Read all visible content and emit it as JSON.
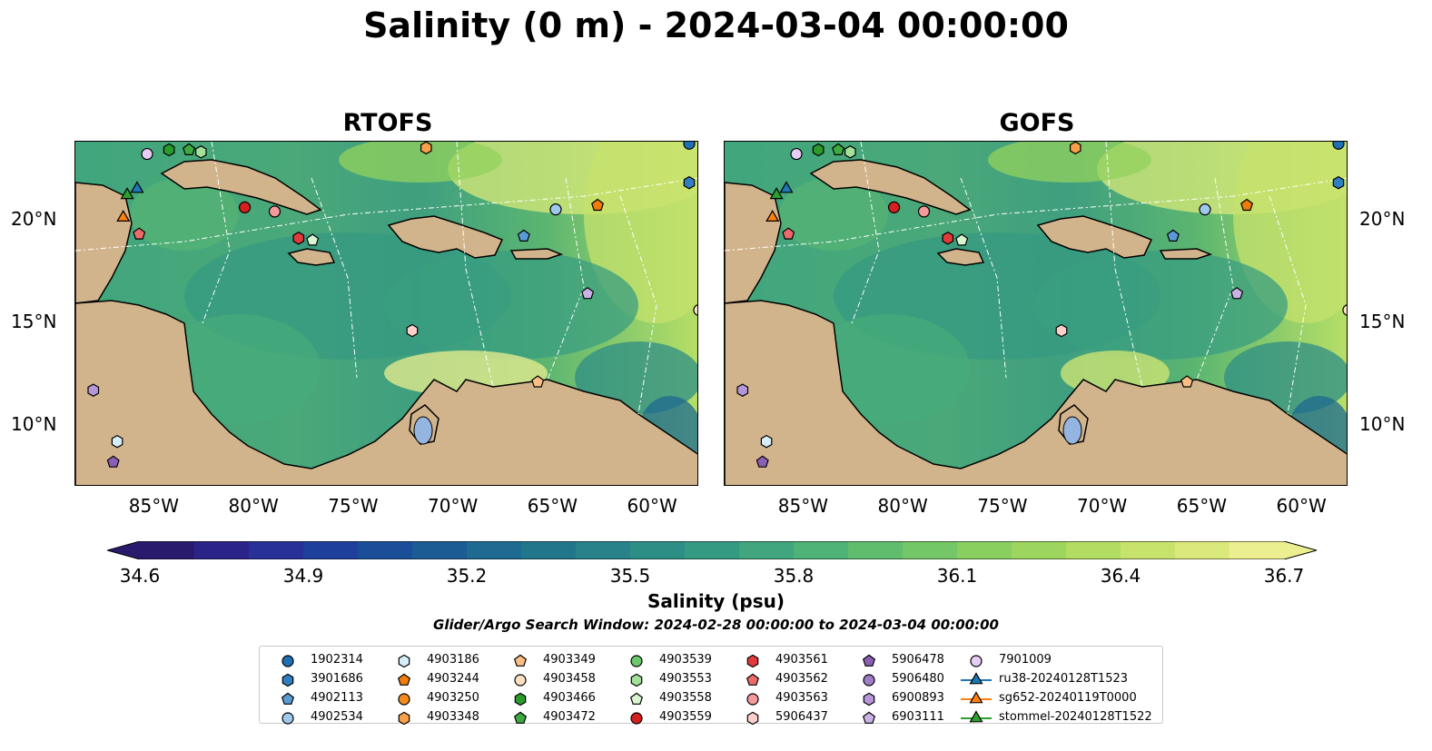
{
  "title": "Salinity (0 m) - 2024-03-04 00:00:00",
  "panels": [
    {
      "title": "RTOFS"
    },
    {
      "title": "GOFS"
    }
  ],
  "x_ticks": [
    "85°W",
    "80°W",
    "75°W",
    "70°W",
    "65°W",
    "60°W"
  ],
  "y_ticks": [
    "20°N",
    "15°N",
    "10°N"
  ],
  "colorbar": {
    "label": "Salinity (psu)",
    "ticks": [
      "34.6",
      "34.9",
      "35.2",
      "35.5",
      "35.8",
      "36.1",
      "36.4",
      "36.7"
    ],
    "min": 34.6,
    "max": 36.7,
    "colors": [
      "#2a1a6e",
      "#2b2488",
      "#283198",
      "#1e3f9c",
      "#1a4e98",
      "#1b5c94",
      "#1e6a90",
      "#22768c",
      "#278289",
      "#2d8e86",
      "#359a82",
      "#41a67d",
      "#4fb276",
      "#60bd6e",
      "#74c766",
      "#89cf60",
      "#9dd65e",
      "#b2dd62",
      "#c7e36c",
      "#dbe97c",
      "#ecef8f"
    ],
    "extend": "both"
  },
  "search_window": "Glider/Argo Search Window: 2024-02-28 00:00:00 to 2024-03-04 00:00:00",
  "legend": [
    {
      "label": "1902314",
      "marker": "circle",
      "color": "#1f6fb4"
    },
    {
      "label": "3901686",
      "marker": "hexagon",
      "color": "#2f7fc1"
    },
    {
      "label": "4902113",
      "marker": "pentagon",
      "color": "#5b9bd5"
    },
    {
      "label": "4902534",
      "marker": "circle",
      "color": "#9ec9ec"
    },
    {
      "label": "4903186",
      "marker": "hexagon",
      "color": "#d6eef9"
    },
    {
      "label": "4903244",
      "marker": "pentagon",
      "color": "#f07c0a"
    },
    {
      "label": "4903250",
      "marker": "circle",
      "color": "#f58a1f"
    },
    {
      "label": "4903348",
      "marker": "hexagon",
      "color": "#f8a14a"
    },
    {
      "label": "4903349",
      "marker": "pentagon",
      "color": "#fbbf86"
    },
    {
      "label": "4903458",
      "marker": "circle",
      "color": "#fde0c2"
    },
    {
      "label": "4903466",
      "marker": "hexagon",
      "color": "#2a9a2a"
    },
    {
      "label": "4903472",
      "marker": "pentagon",
      "color": "#3daa3d"
    },
    {
      "label": "4903539",
      "marker": "circle",
      "color": "#6cc86c"
    },
    {
      "label": "4903553",
      "marker": "hexagon",
      "color": "#a3e09a"
    },
    {
      "label": "4903558",
      "marker": "pentagon",
      "color": "#d8f5cf"
    },
    {
      "label": "4903559",
      "marker": "circle",
      "color": "#d42020"
    },
    {
      "label": "4903561",
      "marker": "hexagon",
      "color": "#e03a3a"
    },
    {
      "label": "4903562",
      "marker": "pentagon",
      "color": "#ec6a6a"
    },
    {
      "label": "4903563",
      "marker": "circle",
      "color": "#f59a9a"
    },
    {
      "label": "5906437",
      "marker": "hexagon",
      "color": "#fcd0c8"
    },
    {
      "label": "5906478",
      "marker": "pentagon",
      "color": "#8a5fb5"
    },
    {
      "label": "5906480",
      "marker": "circle",
      "color": "#9f7dc8"
    },
    {
      "label": "6900893",
      "marker": "hexagon",
      "color": "#b596d8"
    },
    {
      "label": "6903111",
      "marker": "pentagon",
      "color": "#cbb2e6"
    },
    {
      "label": "7901009",
      "marker": "circle",
      "color": "#e5cdf5"
    },
    {
      "label": "ru38-20240128T1523",
      "marker": "triangle-line",
      "color": "#1f77b4"
    },
    {
      "label": "sg652-20240119T0000",
      "marker": "triangle-line",
      "color": "#ff7f0e"
    },
    {
      "label": "stommel-20240128T1522",
      "marker": "triangle-line",
      "color": "#2ca02c"
    }
  ],
  "map_points": [
    {
      "lon": -58.2,
      "lat": 23.7,
      "legend": "1902314"
    },
    {
      "lon": -58.2,
      "lat": 21.8,
      "legend": "3901686"
    },
    {
      "lon": -66.5,
      "lat": 19.2,
      "legend": "4902113"
    },
    {
      "lon": -64.9,
      "lat": 20.5,
      "legend": "4902534"
    },
    {
      "lon": -86.9,
      "lat": 9.2,
      "legend": "4903186"
    },
    {
      "lon": -62.8,
      "lat": 20.7,
      "legend": "4903244"
    },
    {
      "lon": -71.4,
      "lat": 23.5,
      "legend": "4903348"
    },
    {
      "lon": -65.8,
      "lat": 12.1,
      "legend": "4903349"
    },
    {
      "lon": -57.7,
      "lat": 15.6,
      "legend": "4903458"
    },
    {
      "lon": -84.3,
      "lat": 23.4,
      "legend": "4903466"
    },
    {
      "lon": -83.3,
      "lat": 23.4,
      "legend": "4903472"
    },
    {
      "lon": -82.7,
      "lat": 23.3,
      "legend": "4903553"
    },
    {
      "lon": -77.1,
      "lat": 19.0,
      "legend": "4903558"
    },
    {
      "lon": -80.5,
      "lat": 20.6,
      "legend": "4903559"
    },
    {
      "lon": -77.8,
      "lat": 19.1,
      "legend": "4903561"
    },
    {
      "lon": -85.8,
      "lat": 19.3,
      "legend": "4903562"
    },
    {
      "lon": -79.0,
      "lat": 20.4,
      "legend": "4903563"
    },
    {
      "lon": -72.1,
      "lat": 14.6,
      "legend": "5906437"
    },
    {
      "lon": -87.1,
      "lat": 8.2,
      "legend": "5906478"
    },
    {
      "lon": -88.1,
      "lat": 11.7,
      "legend": "6900893"
    },
    {
      "lon": -63.3,
      "lat": 16.4,
      "legend": "6903111"
    },
    {
      "lon": -85.4,
      "lat": 23.2,
      "legend": "7901009"
    },
    {
      "lon": -85.9,
      "lat": 21.5,
      "legend": "ru38-20240128T1523"
    },
    {
      "lon": -86.6,
      "lat": 20.1,
      "legend": "sg652-20240119T0000"
    },
    {
      "lon": -86.4,
      "lat": 21.2,
      "legend": "stommel-20240128T1522"
    }
  ]
}
